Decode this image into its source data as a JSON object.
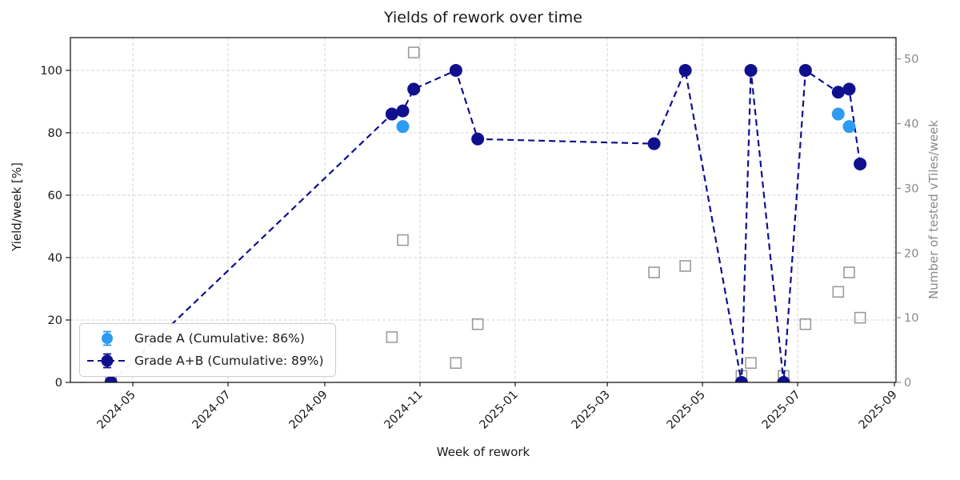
{
  "title": "Yields of rework over time",
  "axes": {
    "x": {
      "label": "Week of rework",
      "tick_labels": [
        "2024-05",
        "2024-07",
        "2024-09",
        "2024-11",
        "2025-01",
        "2025-03",
        "2025-05",
        "2025-07",
        "2025-09"
      ],
      "tick_dates": [
        "2024-05-01",
        "2024-07-01",
        "2024-09-01",
        "2024-11-01",
        "2025-01-01",
        "2025-03-01",
        "2025-05-01",
        "2025-07-01",
        "2025-09-01"
      ],
      "domain": [
        "2024-03-22",
        "2025-09-02"
      ]
    },
    "y_left": {
      "label": "Yield/week [%]",
      "ticks": [
        0,
        20,
        40,
        60,
        80,
        100
      ],
      "range": [
        0,
        110.5
      ]
    },
    "y_right": {
      "label": "Number of tested vTiles/week",
      "ticks": [
        0,
        10,
        20,
        30,
        40,
        50
      ],
      "range": [
        0,
        53.3
      ]
    }
  },
  "legend": {
    "items": [
      {
        "label": "Grade A (Cumulative: 86%)",
        "series": "grade_a"
      },
      {
        "label": "Grade A+B (Cumulative: 89%)",
        "series": "grade_a_plus_b"
      }
    ]
  },
  "colors": {
    "grade_a": "#2e9bf2",
    "grade_a_plus_b": "#10108e",
    "tested": "#9b9b9b",
    "grid": "#d5d5d5",
    "axis_text": "#191919",
    "right_axis_text": "#8a8a8a",
    "spine": "#1a1a1a",
    "legend_border": "#cccccc"
  },
  "chart_data": {
    "type": "line",
    "title": "Yields of rework over time",
    "xlabel": "Week of rework",
    "ylabel_left": "Yield/week [%]",
    "ylabel_right": "Number of tested vTiles/week",
    "grid": true,
    "legend_position": "lower left",
    "series": [
      {
        "name": "Grade A",
        "axis": "left",
        "style": "scatter",
        "color_key": "grade_a",
        "points": [
          {
            "week": "2024-10-21",
            "value": 82
          },
          {
            "week": "2025-07-27",
            "value": 86
          },
          {
            "week": "2025-08-03",
            "value": 82
          }
        ]
      },
      {
        "name": "Grade A+B",
        "axis": "left",
        "style": "dashed-line-with-markers",
        "color_key": "grade_a_plus_b",
        "points": [
          {
            "week": "2024-04-17",
            "value": 0
          },
          {
            "week": "2024-10-14",
            "value": 86
          },
          {
            "week": "2024-10-21",
            "value": 87
          },
          {
            "week": "2024-10-28",
            "value": 94
          },
          {
            "week": "2024-11-24",
            "value": 100
          },
          {
            "week": "2024-12-08",
            "value": 78
          },
          {
            "week": "2025-03-31",
            "value": 76.5
          },
          {
            "week": "2025-04-20",
            "value": 100
          },
          {
            "week": "2025-05-26",
            "value": 0
          },
          {
            "week": "2025-06-01",
            "value": 100
          },
          {
            "week": "2025-06-22",
            "value": 0
          },
          {
            "week": "2025-07-06",
            "value": 100
          },
          {
            "week": "2025-07-27",
            "value": 93
          },
          {
            "week": "2025-08-03",
            "value": 94
          },
          {
            "week": "2025-08-10",
            "value": 70
          }
        ]
      },
      {
        "name": "Number of tested vTiles/week",
        "axis": "right",
        "style": "open-square",
        "color_key": "tested",
        "points": [
          {
            "week": "2024-04-17",
            "value": 1
          },
          {
            "week": "2024-10-14",
            "value": 7
          },
          {
            "week": "2024-10-21",
            "value": 22
          },
          {
            "week": "2024-10-28",
            "value": 51
          },
          {
            "week": "2024-11-24",
            "value": 3
          },
          {
            "week": "2024-12-08",
            "value": 9
          },
          {
            "week": "2025-03-31",
            "value": 17
          },
          {
            "week": "2025-04-20",
            "value": 18
          },
          {
            "week": "2025-05-26",
            "value": 1
          },
          {
            "week": "2025-06-01",
            "value": 3
          },
          {
            "week": "2025-06-22",
            "value": 1
          },
          {
            "week": "2025-07-06",
            "value": 9
          },
          {
            "week": "2025-07-27",
            "value": 14
          },
          {
            "week": "2025-08-03",
            "value": 17
          },
          {
            "week": "2025-08-10",
            "value": 10
          }
        ]
      }
    ]
  }
}
